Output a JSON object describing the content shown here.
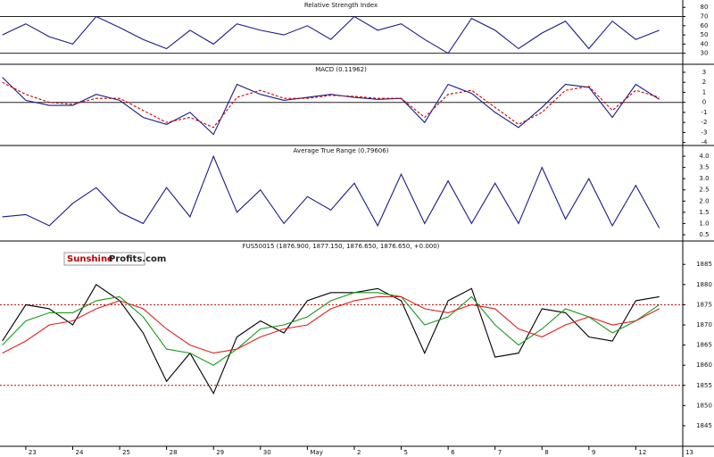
{
  "logo": {
    "part1": "Sunshine",
    "part2": "Profits.com"
  },
  "chart_data": [
    {
      "type": "line",
      "title": "Relative Strength Index",
      "x": [
        -0.5,
        0,
        0.5,
        1,
        1.5,
        2,
        2.5,
        3,
        3.5,
        4,
        4.5,
        5,
        5.5,
        6,
        6.5,
        7,
        7.5,
        8,
        8.5,
        9,
        9.5,
        10,
        10.5,
        11,
        11.5,
        12,
        12.5,
        13,
        13.5
      ],
      "series": [
        {
          "color": "#1a1a8c",
          "style": "solid",
          "values": [
            50,
            62,
            48,
            40,
            70,
            58,
            45,
            35,
            55,
            40,
            62,
            55,
            50,
            60,
            45,
            70,
            55,
            62,
            45,
            30,
            68,
            55,
            35,
            52,
            65,
            35,
            65,
            45,
            55
          ]
        }
      ],
      "ylim": [
        18,
        88
      ],
      "yticks": [
        30,
        40,
        50,
        60,
        70,
        80
      ],
      "hlines": [
        70,
        30
      ],
      "hline_color": "#222222",
      "hline_style": "solid"
    },
    {
      "type": "line",
      "title": "MACD (0.11962)",
      "x": [
        -0.5,
        0,
        0.5,
        1,
        1.5,
        2,
        2.5,
        3,
        3.5,
        4,
        4.5,
        5,
        5.5,
        6,
        6.5,
        7,
        7.5,
        8,
        8.5,
        9,
        9.5,
        10,
        10.5,
        11,
        11.5,
        12,
        12.5,
        13,
        13.5
      ],
      "series": [
        {
          "color": "#1a1a8c",
          "style": "solid",
          "values": [
            2.5,
            0.2,
            -0.3,
            -0.3,
            0.8,
            0.2,
            -1.5,
            -2.2,
            -1.0,
            -3.2,
            1.8,
            0.8,
            0.2,
            0.5,
            0.8,
            0.5,
            0.3,
            0.4,
            -2.0,
            1.8,
            0.9,
            -1.0,
            -2.5,
            -0.5,
            1.8,
            1.5,
            -1.5,
            1.8,
            0.3
          ]
        },
        {
          "color": "#cc0000",
          "style": "dashed",
          "values": [
            2.0,
            0.8,
            0,
            -0.2,
            0.4,
            0.4,
            -0.8,
            -2.0,
            -1.5,
            -2.5,
            0.5,
            1.2,
            0.4,
            0.4,
            0.7,
            0.6,
            0.4,
            0.4,
            -1.5,
            0.8,
            1.2,
            -0.5,
            -2.2,
            -1.0,
            1.2,
            1.6,
            -0.8,
            1.2,
            0.5
          ]
        }
      ],
      "ylim": [
        -4.3,
        3.8
      ],
      "yticks": [
        -4,
        -3,
        -2,
        -1,
        0,
        1,
        2,
        3
      ],
      "hlines": [
        0
      ],
      "hline_color": "#222222",
      "hline_style": "solid"
    },
    {
      "type": "line",
      "title": "Average True Range (0.79606)",
      "x": [
        -0.5,
        0,
        0.5,
        1,
        1.5,
        2,
        2.5,
        3,
        3.5,
        4,
        4.5,
        5,
        5.5,
        6,
        6.5,
        7,
        7.5,
        8,
        8.5,
        9,
        9.5,
        10,
        10.5,
        11,
        11.5,
        12,
        12.5,
        13,
        13.5
      ],
      "series": [
        {
          "color": "#1a1a8c",
          "style": "solid",
          "values": [
            1.3,
            1.4,
            0.9,
            1.9,
            2.6,
            1.5,
            1.0,
            2.6,
            1.3,
            4.0,
            1.5,
            2.5,
            1.0,
            2.2,
            1.6,
            2.8,
            0.9,
            3.2,
            1.0,
            2.9,
            1.0,
            2.8,
            1.0,
            3.5,
            1.2,
            3.0,
            0.9,
            2.7,
            0.8
          ]
        }
      ],
      "ylim": [
        0.22,
        4.48
      ],
      "yticks": [
        0.5,
        {
          "value": 1,
          "label": "1.0"
        },
        1.5,
        {
          "value": 2,
          "label": "2.0"
        },
        2.5,
        {
          "value": 3,
          "label": "3.0"
        },
        3.5,
        {
          "value": 4,
          "label": "4.0"
        }
      ]
    },
    {
      "type": "line",
      "title": "FUS50015 (1876.900, 1877.150, 1876.650, 1876.650, +0.000)",
      "x": [
        -0.5,
        0,
        0.5,
        1,
        1.5,
        2,
        2.5,
        3,
        3.5,
        4,
        4.5,
        5,
        5.5,
        6,
        6.5,
        7,
        7.5,
        8,
        8.5,
        9,
        9.5,
        10,
        10.5,
        11,
        11.5,
        12,
        12.5,
        13,
        13.5
      ],
      "series": [
        {
          "color": "#000000",
          "style": "solid",
          "values": [
            1866,
            1875,
            1874,
            1870,
            1880,
            1876,
            1868,
            1856,
            1863,
            1853,
            1867,
            1871,
            1868,
            1876,
            1878,
            1878,
            1879,
            1876,
            1863,
            1876,
            1879,
            1862,
            1863,
            1874,
            1873,
            1867,
            1866,
            1876,
            1877
          ]
        },
        {
          "color": "#1a9a1a",
          "style": "solid",
          "values": [
            1865,
            1871,
            1873,
            1873,
            1876,
            1877,
            1872,
            1864,
            1863,
            1860,
            1864,
            1869,
            1870,
            1872,
            1876,
            1878,
            1878,
            1877,
            1870,
            1872,
            1877,
            1870,
            1865,
            1869,
            1874,
            1872,
            1868,
            1871,
            1875
          ]
        },
        {
          "color": "#e02020",
          "style": "solid",
          "values": [
            1863,
            1866,
            1870,
            1871,
            1874,
            1876,
            1874,
            1869,
            1865,
            1863,
            1864,
            1867,
            1869,
            1870,
            1874,
            1876,
            1877,
            1877,
            1874,
            1873,
            1875,
            1874,
            1869,
            1867,
            1870,
            1872,
            1870,
            1871,
            1874
          ]
        }
      ],
      "ylim": [
        1839.9,
        1890.8
      ],
      "yticks": [
        1845,
        1850,
        1855,
        1860,
        1865,
        1870,
        1875,
        1880,
        1885
      ],
      "hlines": [
        1875,
        1855
      ],
      "hline_color": "#cc0000",
      "hline_style": "dotted",
      "xlim": [
        -0.55,
        14
      ],
      "xticks": [
        {
          "value": 0,
          "label": "23"
        },
        {
          "value": 1,
          "label": "24"
        },
        {
          "value": 2,
          "label": "25"
        },
        {
          "value": 3,
          "label": "28"
        },
        {
          "value": 4,
          "label": "29"
        },
        {
          "value": 5,
          "label": "30"
        },
        {
          "value": 6,
          "label": "May"
        },
        {
          "value": 7,
          "label": "2"
        },
        {
          "value": 8,
          "label": "5"
        },
        {
          "value": 9,
          "label": "6"
        },
        {
          "value": 10,
          "label": "7"
        },
        {
          "value": 11,
          "label": "8"
        },
        {
          "value": 12,
          "label": "9"
        },
        {
          "value": 13,
          "label": "12"
        },
        {
          "value": 14,
          "label": "13"
        }
      ]
    }
  ]
}
